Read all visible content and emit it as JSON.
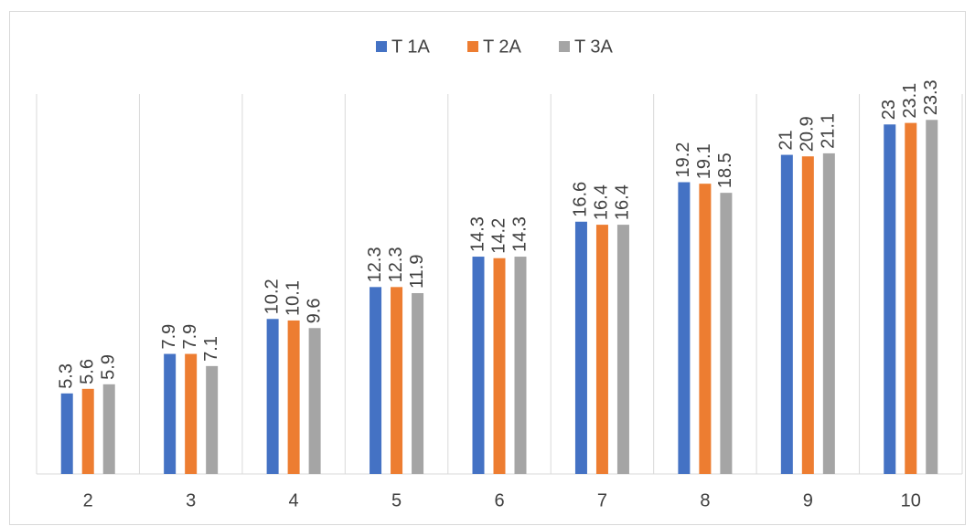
{
  "chart_data": {
    "type": "bar",
    "categories": [
      "2",
      "3",
      "4",
      "5",
      "6",
      "7",
      "8",
      "9",
      "10"
    ],
    "series": [
      {
        "name": "T 1A",
        "color": "#4472c4",
        "values": [
          5.3,
          7.9,
          10.2,
          12.3,
          14.3,
          16.6,
          19.2,
          21,
          23
        ]
      },
      {
        "name": "T 2A",
        "color": "#ed7d31",
        "values": [
          5.6,
          7.9,
          10.1,
          12.3,
          14.2,
          16.4,
          19.1,
          20.9,
          23.1
        ]
      },
      {
        "name": "T 3A",
        "color": "#a5a5a5",
        "values": [
          5.9,
          7.1,
          9.6,
          11.9,
          14.3,
          16.4,
          18.5,
          21.1,
          23.3
        ]
      }
    ],
    "ylim": [
      0,
      25
    ]
  }
}
